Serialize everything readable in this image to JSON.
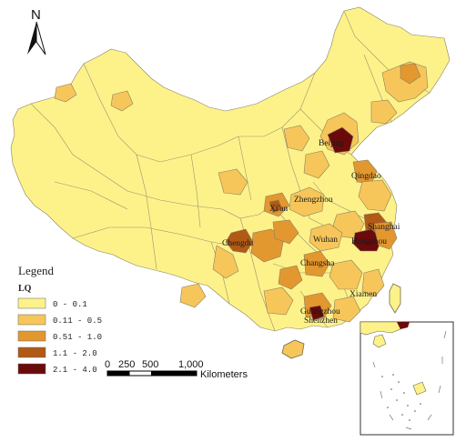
{
  "legend": {
    "title": "Legend",
    "subtitle": "LQ",
    "classes": [
      {
        "label": "0 - 0.1",
        "color": "#fdf28a"
      },
      {
        "label": "0.11 - 0.5",
        "color": "#f7c65a"
      },
      {
        "label": "0.51 - 1.0",
        "color": "#e3972f"
      },
      {
        "label": "1.1 - 2.0",
        "color": "#b05a16"
      },
      {
        "label": "2.1 - 4.0",
        "color": "#6b0a0a"
      }
    ]
  },
  "scale_bar": {
    "ticks": [
      "0",
      "250",
      "500",
      "1,000"
    ],
    "unit": "Kilometers"
  },
  "north_arrow": {
    "label": "N"
  },
  "cities": [
    {
      "name": "Beijing",
      "lq_class": 4
    },
    {
      "name": "Qingdao",
      "lq_class": 2
    },
    {
      "name": "Zhengzhou",
      "lq_class": 2
    },
    {
      "name": "Xi'an",
      "lq_class": 3
    },
    {
      "name": "Shanghai",
      "lq_class": 4
    },
    {
      "name": "Hangzhou",
      "lq_class": 4
    },
    {
      "name": "Wuhan",
      "lq_class": 2
    },
    {
      "name": "Chengdu",
      "lq_class": 3
    },
    {
      "name": "Changsha",
      "lq_class": 2
    },
    {
      "name": "Xiamen",
      "lq_class": 2
    },
    {
      "name": "Guangzhou",
      "lq_class": 3
    },
    {
      "name": "Shenzhen",
      "lq_class": 4
    }
  ]
}
